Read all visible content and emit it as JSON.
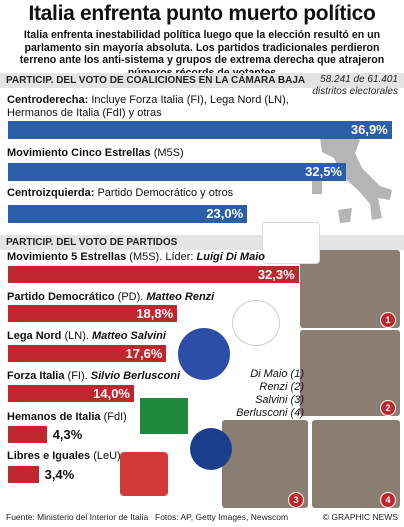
{
  "title": "Italia enfrenta punto muerto político",
  "subtitle": "Italia enfrenta inestabilidad política luego que la elección resultó en un parlamento sin mayoría absoluta. Los partidos tradicionales perdieron terreno ante los anti-sistema y grupos de extrema derecha que atrajeron números récords de votantes",
  "chart_data": [
    {
      "type": "bar",
      "title": "PARTICIP. DEL VOTO DE COALICIONES EN LA CÁMARA BAJA",
      "note": "58.241 de 61.401 distritos electorales",
      "categories": [
        "Centroderecha:",
        "Movimiento Cinco Estrellas",
        "Centroizquierda:"
      ],
      "details": [
        "Incluye Forza Italia (FI), Lega Nord (LN), Hermanos de Italia (FdI) y otras",
        "(M5S)",
        "Partido Democrático y otros"
      ],
      "values": [
        36.9,
        32.5,
        23.0
      ],
      "value_labels": [
        "36,9%",
        "32,5%",
        "23,0%"
      ],
      "color": "#2b5fa9"
    },
    {
      "type": "bar",
      "title": "PARTICIP. DEL VOTO DE PARTIDOS",
      "categories": [
        "Movimiento 5 Estrellas",
        "Partido Democrático",
        "Lega Nord",
        "Forza Italia",
        "Hemanos de Italia",
        "Libres e Iguales"
      ],
      "details": [
        "(M5S). Líder:",
        "(PD).",
        "(LN).",
        "(FI).",
        "(FdI)",
        "(LeU)"
      ],
      "leaders": [
        "Luigi Di Maio",
        "Matteo Renzi",
        "Matteo Salvini",
        "Silvio Berlusconi",
        null,
        null
      ],
      "values": [
        32.3,
        18.8,
        17.6,
        14.0,
        4.3,
        3.4
      ],
      "value_labels": [
        "32,3%",
        "18,8%",
        "17,6%",
        "14,0%",
        "4,3%",
        "3,4%"
      ],
      "color": "#c0262d"
    }
  ],
  "photo_key": [
    "Di Maio (1)",
    "Renzi (2)",
    "Salvini (3)",
    "Berlusconi (4)"
  ],
  "photo_numbers": [
    "1",
    "2",
    "3",
    "4"
  ],
  "footer": {
    "source": "Fuente: Ministerio del Interior de Italia",
    "photos": "Fotos: AP, Getty Images, Newscom",
    "copyright": "© GRAPHIC NEWS"
  }
}
